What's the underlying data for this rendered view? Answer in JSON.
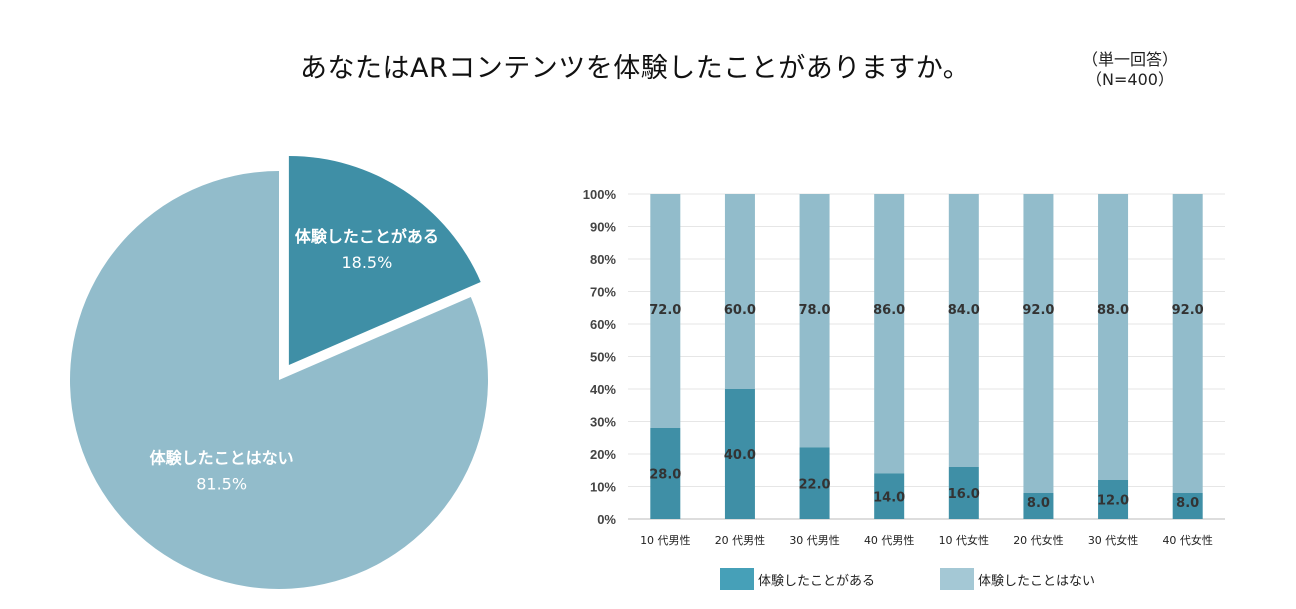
{
  "header": {
    "title": "あなたはARコンテンツを体験したことがありますか。",
    "note_line1": "（単一回答）",
    "note_line2": "（N=400）"
  },
  "colors": {
    "experienced": "#3f8fa6",
    "not_experienced": "#92bccb"
  },
  "chart_data": [
    {
      "type": "pie",
      "title": "",
      "slices": [
        {
          "label": "体験したことがある",
          "value": 18.5,
          "display": "18.5%",
          "exploded": true
        },
        {
          "label": "体験したことはない",
          "value": 81.5,
          "display": "81.5%",
          "exploded": false
        }
      ]
    },
    {
      "type": "bar",
      "stacked": true,
      "categories": [
        "10 代男性",
        "20 代男性",
        "30 代男性",
        "40 代男性",
        "10 代女性",
        "20 代女性",
        "30 代女性",
        "40 代女性"
      ],
      "series": [
        {
          "name": "体験したことがある",
          "values": [
            28.0,
            40.0,
            22.0,
            14.0,
            16.0,
            8.0,
            12.0,
            8.0
          ]
        },
        {
          "name": "体験したことはない",
          "values": [
            72.0,
            60.0,
            78.0,
            86.0,
            84.0,
            92.0,
            88.0,
            92.0
          ]
        }
      ],
      "yticks": [
        "0%",
        "10%",
        "20%",
        "30%",
        "40%",
        "50%",
        "60%",
        "70%",
        "80%",
        "90%",
        "100%"
      ],
      "ylim": [
        0,
        100
      ],
      "xlabel": "",
      "ylabel": "",
      "legend": "bottom",
      "grid": true
    }
  ]
}
